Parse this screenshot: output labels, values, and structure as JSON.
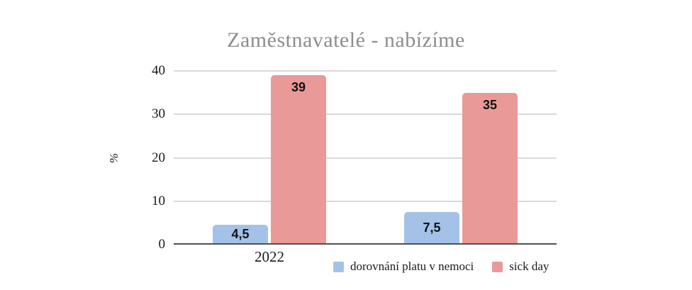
{
  "chart_data": {
    "type": "bar",
    "title": "Zaměstnavatelé - nabízíme",
    "xlabel": "",
    "ylabel": "%",
    "categories": [
      "2022",
      ""
    ],
    "series": [
      {
        "name": "dorovnání platu v nemoci",
        "color": "#a4c2e8",
        "values": [
          4.5,
          7.5
        ],
        "value_labels": [
          "4,5",
          "7,5"
        ]
      },
      {
        "name": "sick day",
        "color": "#ea9999",
        "values": [
          39,
          35
        ],
        "value_labels": [
          "39",
          "35"
        ]
      }
    ],
    "yticks": [
      0,
      10,
      20,
      30,
      40
    ],
    "ylim": [
      0,
      40
    ],
    "grid": true,
    "legend_position": "bottom"
  },
  "colors": {
    "title_gray": "#8d8d8d",
    "gridline": "#d9d9d9",
    "baseline": "#4f4f4f",
    "axis_text": "#1a1a1a",
    "label_text": "#111111",
    "background": "#ffffff"
  }
}
